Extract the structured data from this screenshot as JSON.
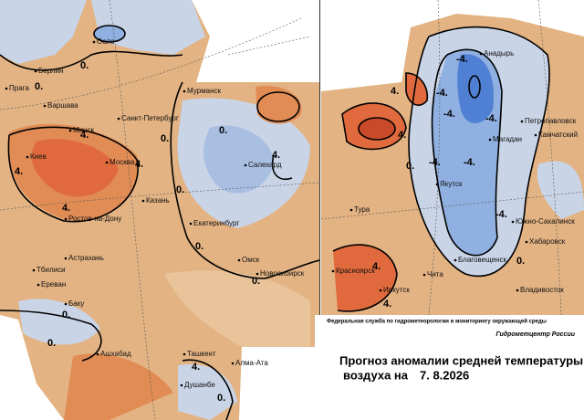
{
  "left_map": {
    "cities": [
      "Осло",
      "Берлин",
      "Прага",
      "Варшава",
      "Минск",
      "Киев",
      "Москва",
      "Санкт-Петербург",
      "Мурманск",
      "Салехард",
      "Казань",
      "Ростов-на-Дону",
      "Екатеринбург",
      "Астрахань",
      "Тбилиси",
      "Ереван",
      "Баку",
      "Омск",
      "Новосибирск",
      "Ашхабад",
      "Ташкент",
      "Алма-Ата",
      "Душанбе"
    ],
    "contour_labels": [
      "0.",
      "0.",
      "4.",
      "0.",
      "4.",
      "4.",
      "0.",
      "0.",
      "4.",
      "0.",
      "0.",
      "0.",
      "0.",
      "4.",
      "0.",
      "4."
    ]
  },
  "right_map": {
    "cities": [
      "Анадырь",
      "Петропавловск",
      "Камчатский",
      "Магадан",
      "Якутск",
      "Тура",
      "Южно-Сахалинск",
      "Хабаровск",
      "Благовещенск",
      "Красноярск",
      "Иркутск",
      "Чита",
      "Владивосток"
    ],
    "contour_labels": [
      "-4.",
      "-4.",
      "4.",
      "4.",
      "-4.",
      "-4.",
      "-4.",
      "-4.",
      "-4.",
      "0.",
      "4.",
      "4.",
      "0."
    ]
  },
  "credits": {
    "agency": "Федеральная служба по гидрометеорологии и мониторингу окружающей среды",
    "center": "Гидрометцентр России"
  },
  "title": {
    "line1": "Прогноз аномалии средней температуры",
    "line2": "воздуха на",
    "date": "7. 8.2026"
  }
}
